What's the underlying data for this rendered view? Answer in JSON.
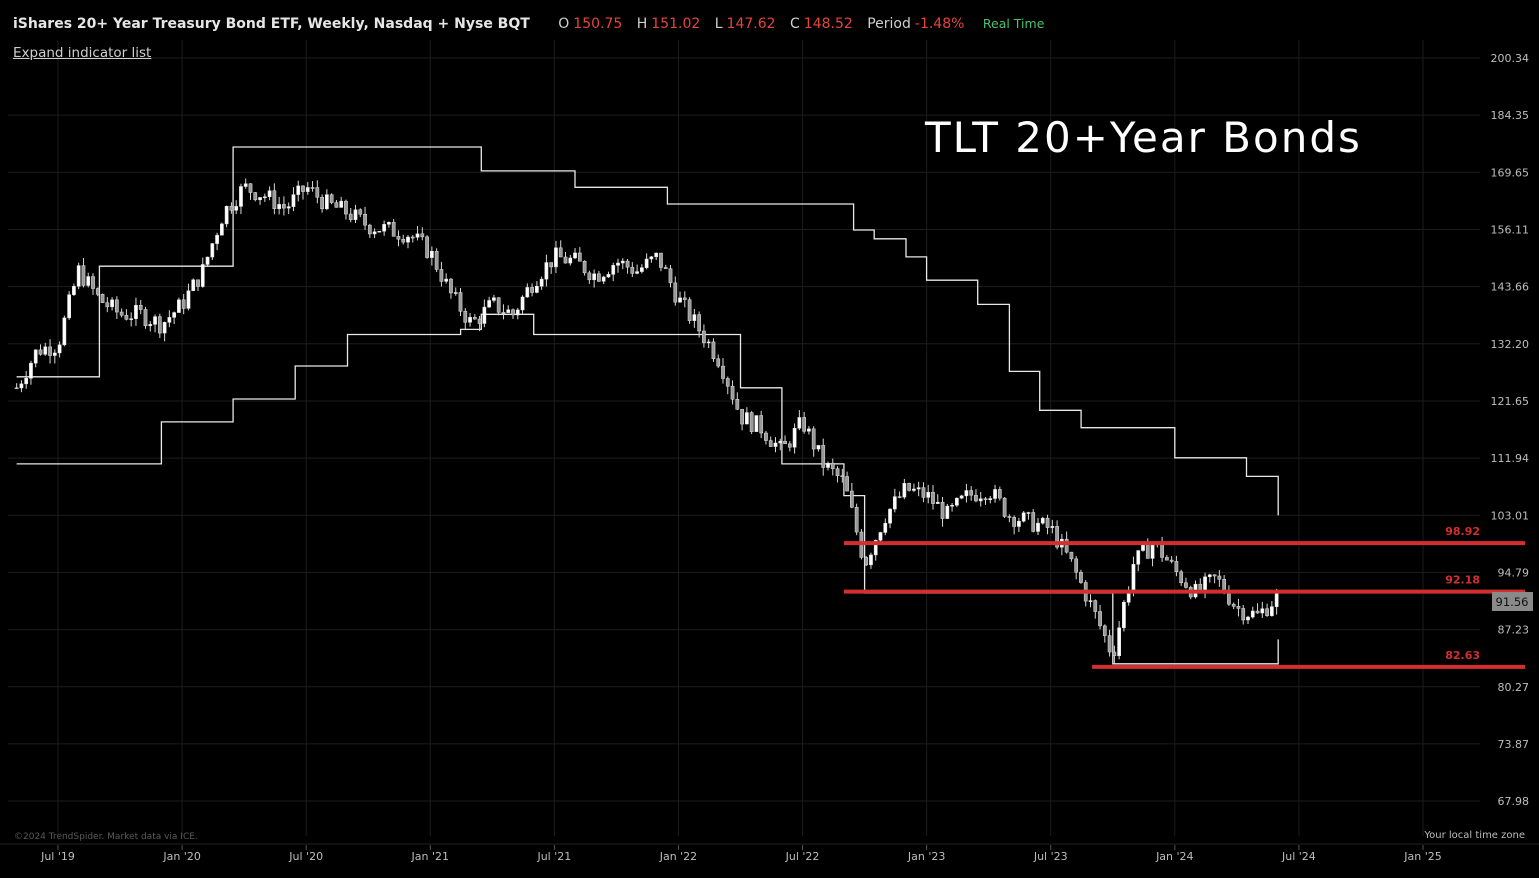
{
  "header": {
    "title": "iShares 20+ Year Treasury Bond ETF, Weekly, Nasdaq + Nyse BQT",
    "open_label": "O",
    "open": "150.75",
    "high_label": "H",
    "high": "151.02",
    "low_label": "L",
    "low": "147.62",
    "close_label": "C",
    "close": "148.52",
    "period_label": "Period",
    "period": "-1.48%",
    "realtime": "Real Time"
  },
  "expand_link": "Expand indicator list",
  "colors": {
    "background": "#000000",
    "candles": "#ffffff",
    "channel": "#ffffff",
    "levels": "#d32f2f",
    "grid": "#1c1c1c"
  },
  "footer": {
    "copyright": "©2024 TrendSpider. Market data via ICE.",
    "timezone": "Your local time zone"
  },
  "chart_data": {
    "type": "candlestick",
    "title": "TLT 20+Year Bonds",
    "y_axis": {
      "position": "right",
      "ticks": [
        200.34,
        184.35,
        169.65,
        156.11,
        143.66,
        132.2,
        121.65,
        111.94,
        103.01,
        94.79,
        87.23,
        80.27,
        73.87,
        67.98
      ],
      "range": [
        65.0,
        207.0
      ]
    },
    "x_axis": {
      "ticks": [
        "Jul '19",
        "Jan '20",
        "Jul '20",
        "Jan '21",
        "Jul '21",
        "Jan '22",
        "Jul '22",
        "Jan '23",
        "Jul '23",
        "Jan '24",
        "Jul '24",
        "Jan '25"
      ]
    },
    "grid": true,
    "last_price": 91.56,
    "levels": [
      {
        "value": 98.92,
        "label": "98.92",
        "from": "2022-09"
      },
      {
        "value": 92.18,
        "label": "92.18",
        "from": "2022-09"
      },
      {
        "value": 82.63,
        "label": "82.63",
        "from": "2023-09"
      }
    ],
    "series": [
      {
        "kind": "close",
        "x": [
          "2019-05-01",
          "2019-06-01",
          "2019-07-01",
          "2019-08-01",
          "2019-09-01",
          "2019-10-01",
          "2019-11-01",
          "2019-12-01",
          "2020-01-01",
          "2020-02-01",
          "2020-03-01",
          "2020-04-01",
          "2020-05-01",
          "2020-06-01",
          "2020-07-01",
          "2020-08-01",
          "2020-09-01",
          "2020-10-01",
          "2020-11-01",
          "2020-12-01",
          "2021-01-01",
          "2021-02-01",
          "2021-03-01",
          "2021-04-01",
          "2021-05-01",
          "2021-06-01",
          "2021-07-01",
          "2021-08-01",
          "2021-09-01",
          "2021-10-01",
          "2021-11-01",
          "2021-12-01",
          "2022-01-01",
          "2022-02-01",
          "2022-03-01",
          "2022-04-01",
          "2022-05-01",
          "2022-06-01",
          "2022-07-01",
          "2022-08-01",
          "2022-09-01",
          "2022-10-01",
          "2022-11-01",
          "2022-12-01",
          "2023-01-01",
          "2023-02-01",
          "2023-03-01",
          "2023-04-01",
          "2023-05-01",
          "2023-06-01",
          "2023-07-01",
          "2023-08-01",
          "2023-09-01",
          "2023-10-01",
          "2023-11-01",
          "2023-12-01",
          "2024-01-01",
          "2024-02-01",
          "2024-03-01",
          "2024-04-01",
          "2024-05-01",
          "2024-06-01"
        ],
        "values": [
          124,
          131,
          132,
          147,
          141,
          138,
          138,
          136,
          140,
          147,
          160,
          166,
          164,
          161,
          166,
          162,
          160,
          157,
          156,
          155,
          151,
          142,
          136,
          140,
          138,
          145,
          150,
          149,
          146,
          149,
          147,
          150,
          141,
          135,
          129,
          119,
          117,
          113,
          118,
          111,
          108,
          96,
          103,
          107,
          106,
          103,
          106,
          107,
          103,
          102,
          101,
          96,
          90,
          84,
          96,
          99,
          95,
          92,
          94,
          90,
          89,
          91.6
        ]
      },
      {
        "kind": "channel_upper",
        "x": [
          "2019-05-01",
          "2019-09-01",
          "2020-03-15",
          "2021-03-15",
          "2021-08-01",
          "2021-12-15",
          "2022-09-15",
          "2022-10-15",
          "2022-12-01",
          "2023-01-01",
          "2023-03-15",
          "2023-05-01",
          "2023-06-15",
          "2023-08-15",
          "2024-01-01",
          "2024-04-15",
          "2024-06-01"
        ],
        "values": [
          126,
          148,
          176,
          170,
          166,
          162,
          156,
          154,
          150,
          145,
          140,
          127,
          120,
          117,
          112,
          109,
          103
        ]
      },
      {
        "kind": "channel_lower",
        "x": [
          "2019-05-01",
          "2019-10-01",
          "2019-12-01",
          "2020-03-15",
          "2020-06-15",
          "2020-09-01",
          "2021-02-15",
          "2021-03-15",
          "2021-06-01",
          "2022-01-01",
          "2022-04-01",
          "2022-06-01",
          "2022-09-01",
          "2022-10-01",
          "2023-08-01",
          "2023-10-01",
          "2024-01-01",
          "2024-06-01"
        ],
        "values": [
          111,
          111,
          118,
          122,
          128,
          134,
          135,
          138,
          134,
          134,
          124,
          111,
          106,
          92,
          92,
          83,
          83,
          86
        ]
      }
    ]
  }
}
